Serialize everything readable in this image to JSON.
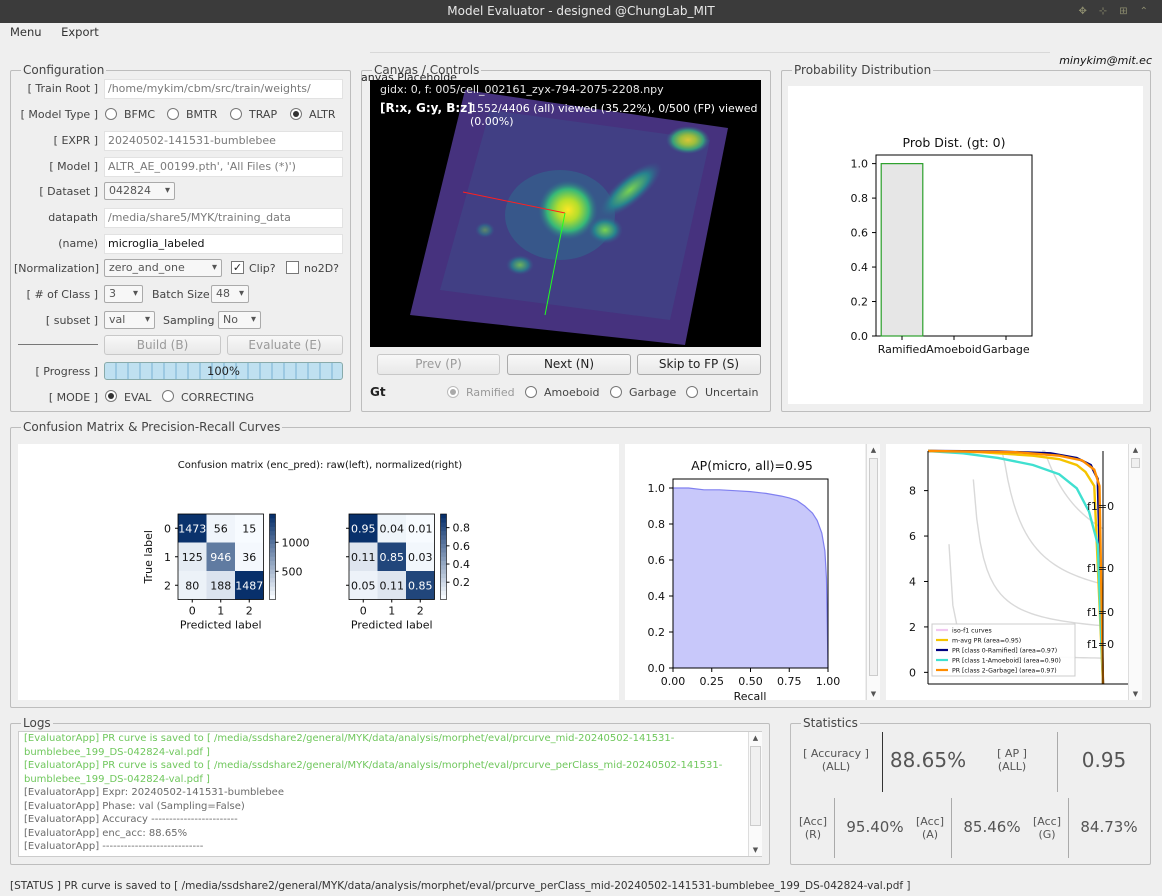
{
  "window": {
    "title": "Model Evaluator - designed @ChungLab_MIT"
  },
  "menu": {
    "items": [
      "Menu",
      "Export"
    ]
  },
  "user": {
    "email": "minykim@mit.ec"
  },
  "config": {
    "legend": "Configuration",
    "train_root_label": "[ Train Root ]",
    "train_root_value": "/home/mykim/cbm/src/train/weights/",
    "model_type_label": "[ Model Type ]",
    "model_types": [
      "BFMC",
      "BMTR",
      "TRAP",
      "ALTR"
    ],
    "model_type_selected": "ALTR",
    "expr_label": "[ EXPR ]",
    "expr_value": "20240502-141531-bumblebee",
    "model_label": "[ Model ]",
    "model_value": "ALTR_AE_00199.pth', 'All Files (*)')",
    "dataset_label": "[ Dataset ]",
    "dataset_value": "042824",
    "datapath_label": "datapath",
    "datapath_value": "/media/share5/MYK/training_data",
    "name_label": "(name)",
    "name_value": "microglia_labeled",
    "norm_label": "[Normalization]",
    "norm_value": "zero_and_one",
    "clip_label": "Clip?",
    "clip_checked": true,
    "no2d_label": "no2D?",
    "nclass_label": "[ # of Class ]",
    "nclass_value": "3",
    "batch_label": "Batch Size",
    "batch_value": "48",
    "subset_label": "[ subset ]",
    "subset_value": "val",
    "sampling_label": "Sampling",
    "sampling_value": "No",
    "build_label": "Build (B)",
    "evaluate_label": "Evaluate (E)",
    "progress_label": "[ Progress ]",
    "progress_value": 100,
    "progress_text": "100%",
    "mode_label": "[ MODE ]",
    "modes": [
      "EVAL",
      "CORRECTING"
    ],
    "mode_selected": "EVAL"
  },
  "canvas": {
    "legend": "Canvas / Controls",
    "placeholder": "anvas Placeholde",
    "info_line1": "gidx: 0, f: 005/cell_002161_zyx-794-2075-2208.npy",
    "info_axes": "[R:x, G:y, B:z]",
    "info_viewed": "1552/4406 (all) viewed (35.22%), 0/500 (FP) viewed (0.00%)",
    "prev_label": "Prev (P)",
    "next_label": "Next (N)",
    "skip_label": "Skip to FP (S)",
    "gt_label": "Gt",
    "gt_options": [
      "Ramified",
      "Amoeboid",
      "Garbage",
      "Uncertain"
    ],
    "gt_selected": "Ramified"
  },
  "prob": {
    "legend": "Probability Distribution",
    "chart_data": {
      "type": "bar",
      "title": "Prob Dist. (gt: 0)",
      "categories": [
        "Ramified",
        "Amoeboid",
        "Garbage"
      ],
      "values": [
        1.0,
        0.0,
        0.0
      ],
      "ylim": [
        0,
        1.0
      ],
      "yticks": [
        "0.0",
        "0.2",
        "0.4",
        "0.6",
        "0.8",
        "1.0"
      ],
      "colors": {
        "edge": "#2ca02c",
        "fill": "#e6e6e6"
      }
    }
  },
  "cm": {
    "legend": "Confusion Matrix & Precision-Recall Curves",
    "title": "Confusion matrix (enc_pred): raw(left), normalized(right)",
    "xlabel": "Predicted label",
    "ylabel": "True label",
    "ticks": [
      "0",
      "1",
      "2"
    ],
    "raw": [
      [
        "1473",
        "56",
        "15"
      ],
      [
        "125",
        "946",
        "36"
      ],
      [
        "80",
        "188",
        "1487"
      ]
    ],
    "norm": [
      [
        "0.95",
        "0.04",
        "0.01"
      ],
      [
        "0.11",
        "0.85",
        "0.03"
      ],
      [
        "0.05",
        "0.11",
        "0.85"
      ]
    ],
    "raw_cbar_ticks": [
      "1000",
      "500"
    ],
    "norm_cbar_ticks": [
      "0.8",
      "0.6",
      "0.4",
      "0.2"
    ]
  },
  "ap": {
    "chart_data": {
      "type": "area",
      "title": "AP(micro, all)=0.95",
      "xlabel": "Recall",
      "xticks": [
        "0.00",
        "0.25",
        "0.50",
        "0.75",
        "1.00"
      ],
      "yticks": [
        "0.0",
        "0.2",
        "0.4",
        "0.6",
        "0.8",
        "1.0"
      ],
      "xlim": [
        0,
        1
      ],
      "ylim": [
        0,
        1.05
      ],
      "x": [
        0,
        0.1,
        0.2,
        0.3,
        0.4,
        0.5,
        0.6,
        0.7,
        0.75,
        0.8,
        0.85,
        0.9,
        0.93,
        0.96,
        0.98,
        0.99,
        1.0
      ],
      "y": [
        1.0,
        1.0,
        0.99,
        0.99,
        0.985,
        0.98,
        0.97,
        0.955,
        0.945,
        0.93,
        0.9,
        0.86,
        0.82,
        0.75,
        0.65,
        0.5,
        0.0
      ],
      "colors": {
        "line": "#8080f0",
        "fill": "#c8c8fa"
      }
    }
  },
  "pr": {
    "chart_data": {
      "type": "line",
      "yticks": [
        "0",
        "2",
        "4",
        "6",
        "8"
      ],
      "iso_labels": [
        "f1=0",
        "f1=0",
        "f1=0",
        "f1=0"
      ],
      "legend": [
        "iso-f1 curves",
        "m-avg PR (area=0.95)",
        "PR [class 0-Ramified] (area=0.97)",
        "PR [class 1-Amoeboid] (area=0.90)",
        "PR [class 2-Garbage] (area=0.97)"
      ],
      "series": [
        {
          "name": "m-avg PR (area=0.95)",
          "color": "#f5c400",
          "x": [
            0,
            0.3,
            0.6,
            0.75,
            0.85,
            0.9,
            0.95,
            1.0
          ],
          "y": [
            1.0,
            0.995,
            0.98,
            0.965,
            0.94,
            0.91,
            0.85,
            0.0
          ]
        },
        {
          "name": "PR [class 0-Ramified] (area=0.97)",
          "color": "#000080",
          "x": [
            0,
            0.4,
            0.7,
            0.85,
            0.93,
            0.97,
            1.0
          ],
          "y": [
            1.0,
            0.998,
            0.99,
            0.97,
            0.94,
            0.88,
            0.0
          ]
        },
        {
          "name": "PR [class 1-Amoeboid] (area=0.90)",
          "color": "#40e0d0",
          "x": [
            0,
            0.2,
            0.4,
            0.6,
            0.75,
            0.85,
            0.92,
            0.97,
            1.0
          ],
          "y": [
            1.0,
            0.99,
            0.97,
            0.94,
            0.9,
            0.84,
            0.74,
            0.6,
            0.0
          ]
        },
        {
          "name": "PR [class 2-Garbage] (area=0.97)",
          "color": "#ff8c00",
          "x": [
            0,
            0.5,
            0.75,
            0.88,
            0.95,
            0.98,
            1.0
          ],
          "y": [
            1.0,
            0.995,
            0.98,
            0.96,
            0.92,
            0.85,
            0.0
          ]
        }
      ]
    }
  },
  "logs": {
    "legend": "Logs",
    "lines": [
      {
        "text": "[EvaluatorApp] PR curve is saved to [ /media/ssdshare2/general/MYK/data/analysis/morphet/eval/prcurve_mid-20240502-141531-",
        "green": true
      },
      {
        "text": "bumblebee_199_DS-042824-val.pdf ]",
        "green": true
      },
      {
        "text": "[EvaluatorApp] PR curve is saved to [ /media/ssdshare2/general/MYK/data/analysis/morphet/eval/prcurve_perClass_mid-20240502-141531-",
        "green": true
      },
      {
        "text": "bumblebee_199_DS-042824-val.pdf ]",
        "green": true
      },
      {
        "text": "[EvaluatorApp] Expr: 20240502-141531-bumblebee",
        "green": false
      },
      {
        "text": "[EvaluatorApp] Phase: val (Sampling=False)",
        "green": false
      },
      {
        "text": "[EvaluatorApp] Accuracy ------------------------",
        "green": false
      },
      {
        "text": "[EvaluatorApp] enc_acc: 88.65%",
        "green": false
      },
      {
        "text": "[EvaluatorApp] ----------------------------",
        "green": false
      }
    ]
  },
  "stats": {
    "legend": "Statistics",
    "acc_label": "[ Accuracy ]\n(ALL)",
    "acc_value": "88.65%",
    "ap_label": "[ AP ]\n(ALL)",
    "ap_value": "0.95",
    "acc_r_label": "[Acc]\n(R)",
    "acc_r_value": "95.40%",
    "acc_a_label": "[Acc]\n(A)",
    "acc_a_value": "85.46%",
    "acc_g_label": "[Acc]\n(G)",
    "acc_g_value": "84.73%"
  },
  "status": {
    "text": "[STATUS ] PR curve is saved to [ /media/ssdshare2/general/MYK/data/analysis/morphet/eval/prcurve_perClass_mid-20240502-141531-bumblebee_199_DS-042824-val.pdf ]"
  }
}
